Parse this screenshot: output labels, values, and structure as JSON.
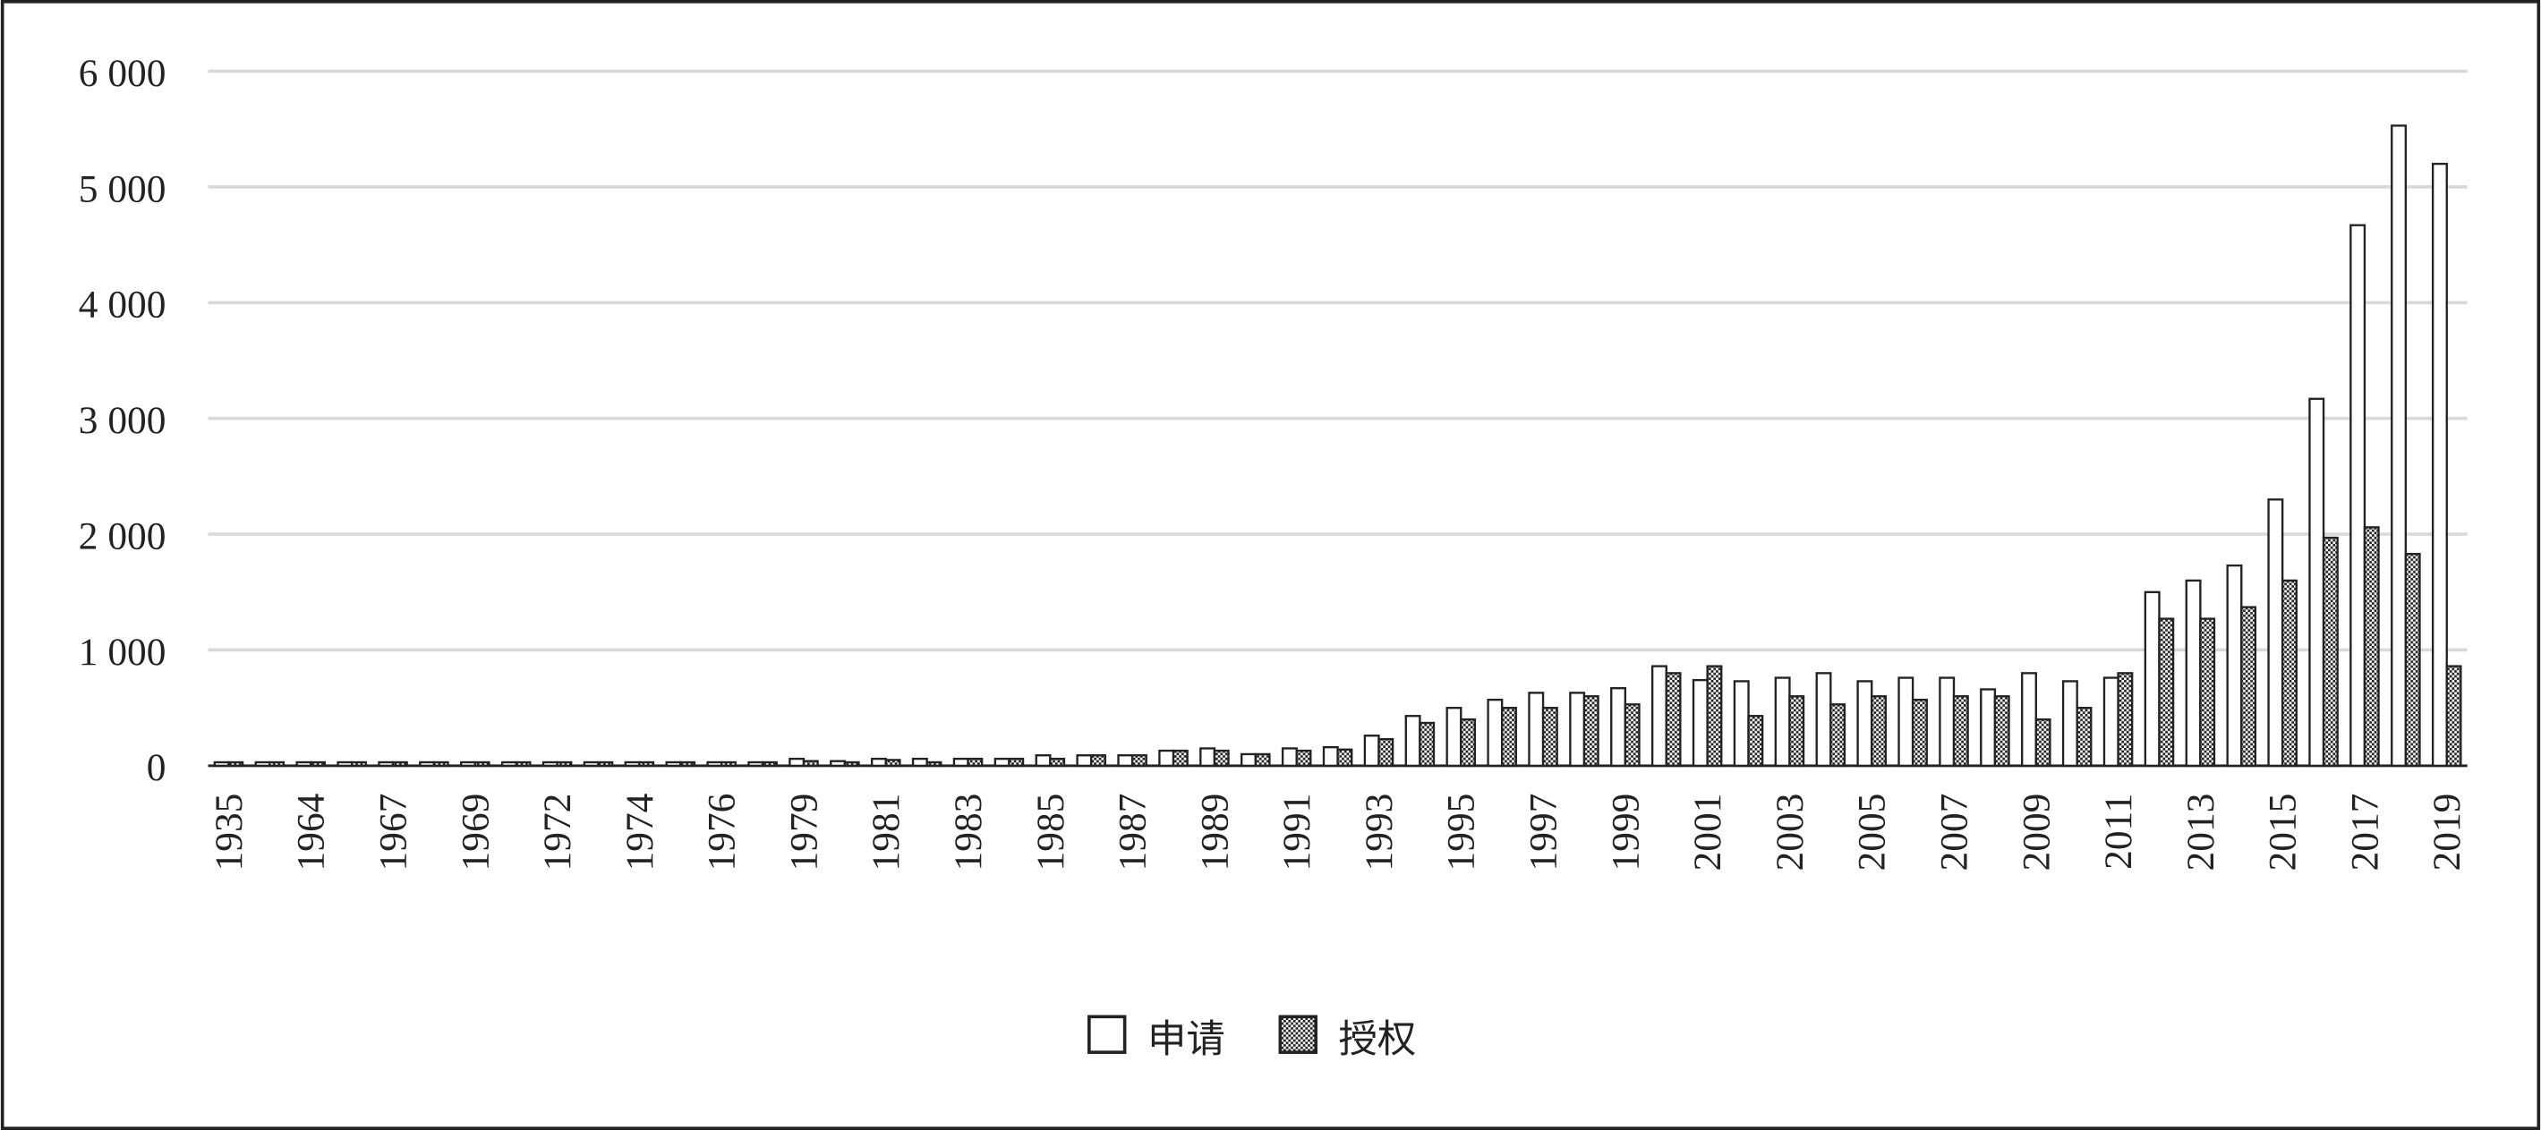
{
  "chart_data": {
    "type": "bar",
    "categories": [
      "1935",
      null,
      "1964",
      null,
      "1967",
      null,
      "1969",
      null,
      "1972",
      null,
      "1974",
      null,
      "1976",
      null,
      "1979",
      null,
      "1981",
      null,
      "1983",
      null,
      "1985",
      null,
      "1987",
      null,
      "1989",
      null,
      "1991",
      null,
      "1993",
      null,
      "1995",
      null,
      "1997",
      null,
      "1999",
      null,
      "2001",
      null,
      "2003",
      null,
      "2005",
      null,
      "2007",
      null,
      "2009",
      null,
      "2011",
      null,
      "2013",
      null,
      "2015",
      null,
      "2017",
      null,
      "2019"
    ],
    "series": [
      {
        "name": "申请",
        "color": "#ffffff",
        "values": [
          30,
          30,
          30,
          30,
          30,
          30,
          30,
          30,
          30,
          30,
          30,
          30,
          30,
          30,
          60,
          40,
          60,
          60,
          60,
          60,
          90,
          90,
          90,
          130,
          150,
          100,
          150,
          160,
          260,
          430,
          500,
          570,
          630,
          630,
          670,
          860,
          740,
          730,
          760,
          800,
          730,
          760,
          760,
          660,
          800,
          730,
          760,
          1500,
          1600,
          1730,
          2300,
          3170,
          4670,
          5530,
          5200
        ]
      },
      {
        "name": "授权",
        "color": "#222222",
        "values": [
          30,
          30,
          30,
          30,
          30,
          30,
          30,
          30,
          30,
          30,
          30,
          30,
          30,
          30,
          40,
          30,
          50,
          30,
          60,
          60,
          60,
          90,
          90,
          130,
          130,
          100,
          130,
          140,
          230,
          370,
          400,
          500,
          500,
          600,
          530,
          800,
          860,
          430,
          600,
          530,
          600,
          570,
          600,
          600,
          400,
          500,
          800,
          1270,
          1270,
          1370,
          1600,
          1970,
          2060,
          1830,
          860
        ]
      }
    ],
    "ylim": [
      0,
      6000
    ],
    "yticks": [
      0,
      {
        "value": 1000,
        "label": "1 000"
      },
      {
        "value": 2000,
        "label": "2 000"
      },
      {
        "value": 3000,
        "label": "3 000"
      },
      {
        "value": 4000,
        "label": "4 000"
      },
      {
        "value": 5000,
        "label": "5 000"
      },
      {
        "value": 6000,
        "label": "6 000"
      }
    ],
    "grid": true,
    "legend": "bottom"
  }
}
